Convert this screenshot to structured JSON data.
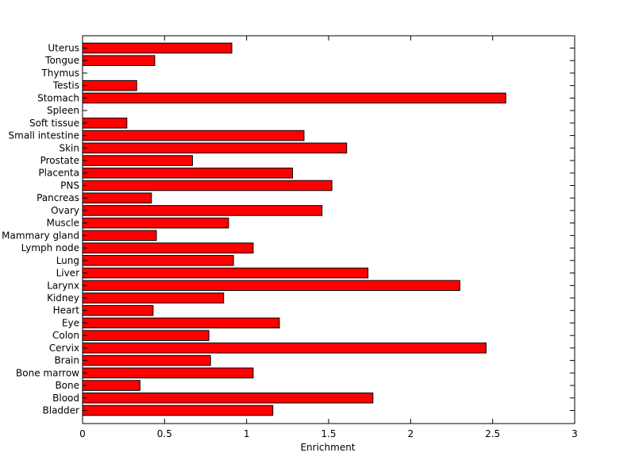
{
  "chart_data": {
    "type": "bar",
    "orientation": "horizontal",
    "categories": [
      "Bladder",
      "Blood",
      "Bone",
      "Bone marrow",
      "Brain",
      "Cervix",
      "Colon",
      "Eye",
      "Heart",
      "Kidney",
      "Larynx",
      "Liver",
      "Lung",
      "Lymph node",
      "Mammary gland",
      "Muscle",
      "Ovary",
      "Pancreas",
      "PNS",
      "Placenta",
      "Prostate",
      "Skin",
      "Small intestine",
      "Soft tissue",
      "Spleen",
      "Stomach",
      "Testis",
      "Thymus",
      "Tongue",
      "Uterus"
    ],
    "values": [
      1.16,
      1.77,
      0.35,
      1.04,
      0.78,
      2.46,
      0.77,
      1.2,
      0.43,
      0.86,
      2.3,
      1.74,
      0.92,
      1.04,
      0.45,
      0.89,
      1.46,
      0.42,
      1.52,
      1.28,
      0.67,
      1.61,
      1.35,
      0.27,
      0,
      2.58,
      0.33,
      0,
      0.44,
      0.91
    ],
    "xlabel": "Enrichment",
    "ylabel": "",
    "title": "",
    "xlim": [
      0,
      3
    ],
    "xticks": [
      0,
      0.5,
      1,
      1.5,
      2,
      2.5,
      3
    ],
    "xtick_labels": [
      "0",
      "0.5",
      "1",
      "1.5",
      "2",
      "2.5",
      "3"
    ],
    "bar_color": "#ff0000",
    "bar_edge_color": "#000000",
    "grid": false,
    "legend": "none"
  }
}
